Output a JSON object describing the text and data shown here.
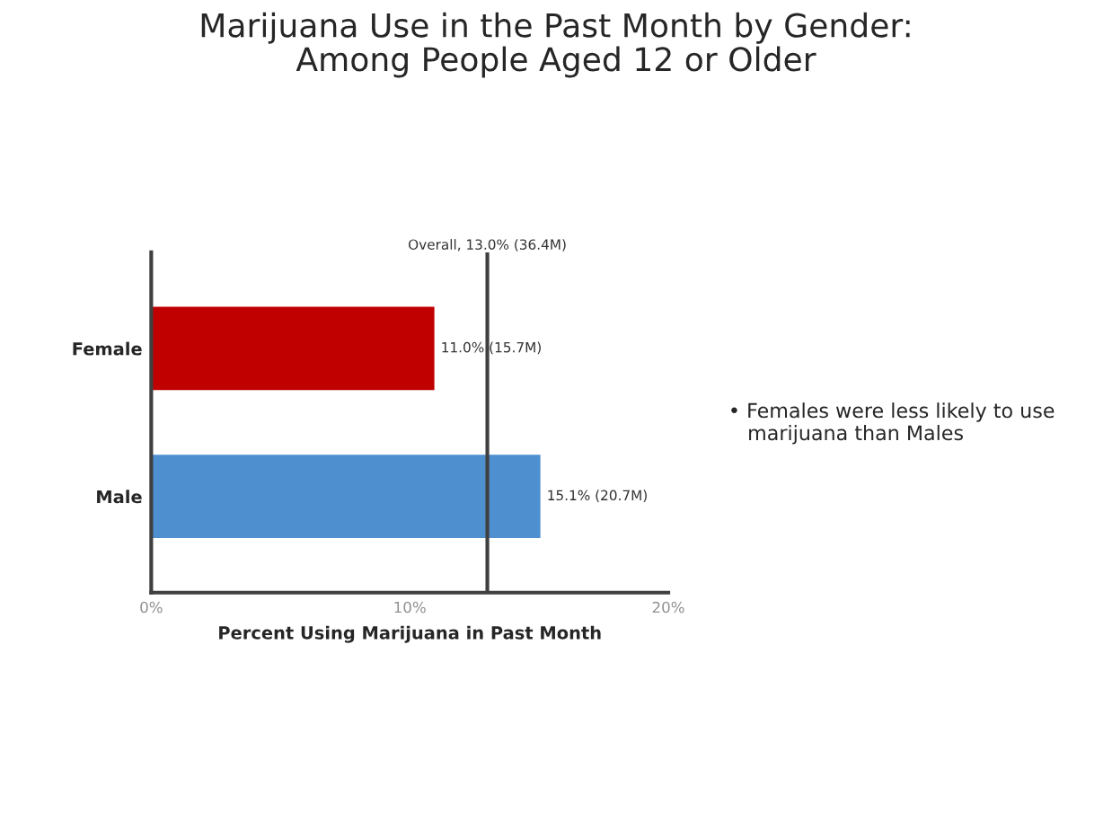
{
  "chart_data": {
    "type": "bar",
    "orientation": "horizontal",
    "title": "Marijuana Use in the Past Month by Gender:\nAmong People Aged 12 or Older",
    "xlabel": "Percent Using Marijuana in Past Month",
    "categories": [
      "Female",
      "Male"
    ],
    "values": [
      11.0,
      15.1
    ],
    "colors": [
      "#c00000",
      "#4e8fcf"
    ],
    "value_labels": [
      "11.0% (15.7M)",
      "15.1% (20.7M)"
    ],
    "xlim": [
      0,
      20
    ],
    "xticks": [
      {
        "value": 0,
        "label": "0%"
      },
      {
        "value": 10,
        "label": "10%"
      },
      {
        "value": 20,
        "label": "20%"
      }
    ],
    "ref_lines": [
      {
        "axis": "x",
        "value": 13.0,
        "label": "Overall, 13.0% (36.4M)",
        "color": "#404040"
      }
    ],
    "annotations": [
      "• Females were less likely to use\n   marijuana than Males"
    ],
    "grid": false,
    "legend": false
  }
}
